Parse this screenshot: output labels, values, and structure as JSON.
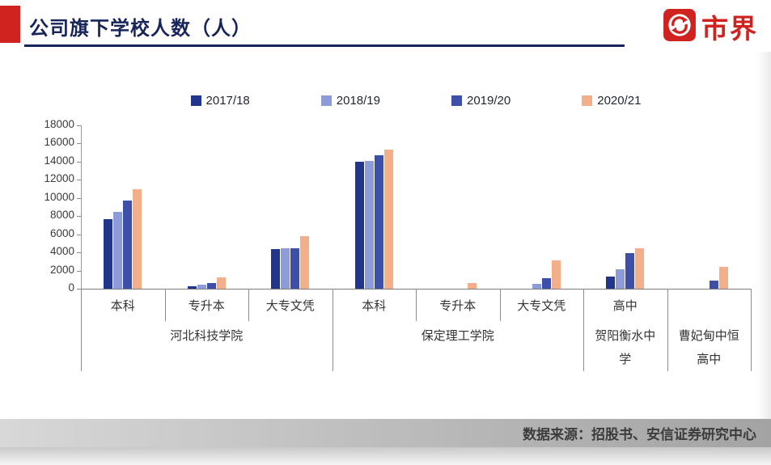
{
  "header": {
    "title": "公司旗下学校人数（人）",
    "logo_text": "市界",
    "accent_color": "#d0231f",
    "title_color": "#17255a"
  },
  "footer": {
    "source": "数据来源：招股书、安信证券研究中心"
  },
  "chart_data": {
    "type": "bar",
    "title": "公司旗下学校人数（人）",
    "xlabel": "",
    "ylabel": "",
    "ylim": [
      0,
      18000
    ],
    "ytick_step": 2000,
    "grid": false,
    "legend_position": "top",
    "groups": [
      {
        "school": "河北科技学院",
        "categories": [
          "本科",
          "专升本",
          "大专文凭"
        ]
      },
      {
        "school": "保定理工学院",
        "categories": [
          "本科",
          "专升本",
          "大专文凭"
        ]
      },
      {
        "school": "贺阳衡水中学",
        "categories": [
          "高中"
        ]
      },
      {
        "school": "曹妃甸中恒高中",
        "categories": [
          ""
        ]
      }
    ],
    "flat_categories": [
      "本科",
      "专升本",
      "大专文凭",
      "本科",
      "专升本",
      "大专文凭",
      "高中",
      ""
    ],
    "series": [
      {
        "name": "2017/18",
        "color": "#21368b",
        "values": [
          7700,
          300,
          4400,
          14000,
          0,
          0,
          1300,
          0
        ]
      },
      {
        "name": "2018/19",
        "color": "#8d9bd8",
        "values": [
          8500,
          450,
          4500,
          14100,
          0,
          500,
          2100,
          0
        ]
      },
      {
        "name": "2019/20",
        "color": "#3e4fa8",
        "values": [
          9700,
          600,
          4500,
          14700,
          0,
          1200,
          3900,
          900
        ]
      },
      {
        "name": "2020/21",
        "color": "#f2af8a",
        "values": [
          11000,
          1250,
          5800,
          15300,
          600,
          3100,
          4500,
          2400
        ]
      }
    ]
  }
}
